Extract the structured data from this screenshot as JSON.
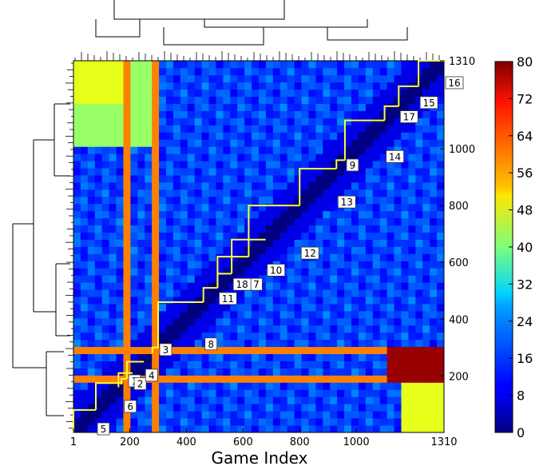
{
  "chart_data": {
    "type": "heatmap",
    "title": "",
    "xlabel": "Game Index",
    "ylabel": "",
    "x_range": [
      1,
      1310
    ],
    "y_range": [
      1,
      1310
    ],
    "x_ticks": [
      {
        "value": 1,
        "label": "1"
      },
      {
        "value": 200,
        "label": "200"
      },
      {
        "value": 400,
        "label": "400"
      },
      {
        "value": 600,
        "label": "600"
      },
      {
        "value": 800,
        "label": "800"
      },
      {
        "value": 1000,
        "label": "1000"
      },
      {
        "value": 1310,
        "label": "1310"
      }
    ],
    "y_ticks": [
      {
        "value": 200,
        "label": "200"
      },
      {
        "value": 400,
        "label": "400"
      },
      {
        "value": 600,
        "label": "600"
      },
      {
        "value": 800,
        "label": "800"
      },
      {
        "value": 1000,
        "label": "1000"
      },
      {
        "value": 1310,
        "label": "1310"
      }
    ],
    "colorbar": {
      "min": 0,
      "max": 80,
      "colormap": "jet",
      "ticks": [
        0,
        8,
        16,
        24,
        32,
        40,
        48,
        56,
        64,
        72,
        80
      ]
    },
    "description_values": {
      "diagonal_value": 0,
      "background_value": 15,
      "hot_band_rows": [
        [
          175,
          195
        ],
        [
          280,
          300
        ]
      ],
      "hot_band_cols": [
        [
          175,
          195
        ],
        [
          280,
          300
        ]
      ],
      "hot_band_value": 60,
      "peak_value": 78
    },
    "clusters": [
      {
        "label": "1",
        "start": 170,
        "end": 190
      },
      {
        "label": "2",
        "start": 160,
        "end": 210
      },
      {
        "label": "3",
        "start": 280,
        "end": 300
      },
      {
        "label": "4",
        "start": 190,
        "end": 250
      },
      {
        "label": "5",
        "start": 1,
        "end": 80
      },
      {
        "label": "6",
        "start": 80,
        "end": 175
      },
      {
        "label": "7",
        "start": 510,
        "end": 620
      },
      {
        "label": "8",
        "start": 300,
        "end": 460
      },
      {
        "label": "9",
        "start": 930,
        "end": 960
      },
      {
        "label": "10",
        "start": 560,
        "end": 680
      },
      {
        "label": "11",
        "start": 460,
        "end": 510
      },
      {
        "label": "12",
        "start": 620,
        "end": 800
      },
      {
        "label": "13",
        "start": 800,
        "end": 930
      },
      {
        "label": "14",
        "start": 960,
        "end": 1100
      },
      {
        "label": "15",
        "start": 1150,
        "end": 1220
      },
      {
        "label": "16",
        "start": 1220,
        "end": 1310
      },
      {
        "label": "17",
        "start": 1100,
        "end": 1150
      },
      {
        "label": "18",
        "start": 510,
        "end": 560
      }
    ],
    "grid": false,
    "legend": "colorbar-right"
  }
}
